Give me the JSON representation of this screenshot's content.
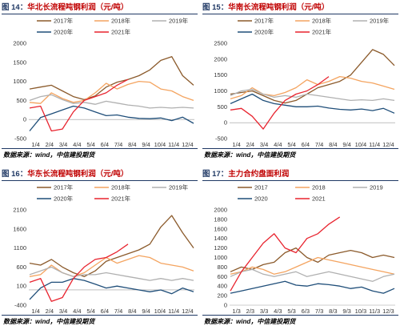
{
  "panels": [
    {
      "fig": "图 14：",
      "title": "华北长流程吨钢利润（元/吨）",
      "source": "数据来源：wind，中信建投期货",
      "chart_data": {
        "type": "line",
        "x_ticks": [
          "1/4",
          "2/4",
          "3/4",
          "4/4",
          "5/4",
          "6/4",
          "7/4",
          "8/4",
          "9/4",
          "10/4",
          "11/4",
          "12/4"
        ],
        "yticks": [
          -500,
          0,
          500,
          1000,
          1500,
          2000
        ],
        "ylim": [
          -500,
          2000
        ],
        "series": [
          {
            "name": "2017年",
            "color": "#8b5a2b",
            "values": [
              800,
              850,
              900,
              750,
              600,
              520,
              620,
              850,
              980,
              1050,
              1150,
              1300,
              1550,
              1650,
              1150,
              900
            ]
          },
          {
            "name": "2018年",
            "color": "#f4a460",
            "values": [
              450,
              420,
              700,
              550,
              450,
              500,
              700,
              950,
              800,
              920,
              1000,
              980,
              800,
              750,
              600,
              500
            ]
          },
          {
            "name": "2019年",
            "color": "#b0b0b0",
            "values": [
              500,
              600,
              650,
              520,
              420,
              450,
              400,
              480,
              430,
              380,
              350,
              300,
              320,
              300,
              320,
              300
            ]
          },
          {
            "name": "2020年",
            "color": "#1f4e79",
            "values": [
              -300,
              50,
              150,
              250,
              350,
              300,
              200,
              100,
              120,
              60,
              30,
              20,
              40,
              -30,
              60,
              -100
            ]
          },
          {
            "name": "2021年",
            "color": "#e8242f",
            "values": [
              300,
              350,
              -300,
              -250,
              200,
              500,
              600,
              700,
              900,
              1050
            ]
          }
        ]
      }
    },
    {
      "fig": "图 15：",
      "title": "华南长流程吨钢利润（元/吨）",
      "source": "数据来源：wind，中信建投期货",
      "chart_data": {
        "type": "line",
        "x_ticks": [
          "1/4",
          "2/4",
          "3/4",
          "4/4",
          "5/4",
          "6/4",
          "7/4",
          "8/4",
          "9/4",
          "10/4",
          "11/4",
          "12/4"
        ],
        "yticks": [
          -500,
          0,
          500,
          1000,
          1500,
          2000,
          2500
        ],
        "ylim": [
          -500,
          2500
        ],
        "series": [
          {
            "name": "2017年",
            "color": "#8b5a2b",
            "values": [
              900,
              950,
              1000,
              850,
              700,
              620,
              700,
              900,
              1100,
              1200,
              1300,
              1500,
              1900,
              2300,
              2150,
              1800
            ]
          },
          {
            "name": "2018年",
            "color": "#f4a460",
            "values": [
              750,
              850,
              1100,
              900,
              850,
              950,
              1100,
              1350,
              1200,
              1300,
              1450,
              1400,
              1300,
              1250,
              1150,
              1050
            ]
          },
          {
            "name": "2019年",
            "color": "#b0b0b0",
            "values": [
              850,
              1000,
              1050,
              900,
              800,
              850,
              800,
              900,
              850,
              800,
              750,
              700,
              720,
              700,
              750,
              700
            ]
          },
          {
            "name": "2020年",
            "color": "#1f4e79",
            "values": [
              600,
              750,
              900,
              700,
              600,
              550,
              500,
              500,
              520,
              460,
              420,
              400,
              430,
              380,
              450,
              300
            ]
          },
          {
            "name": "2021年",
            "color": "#e8242f",
            "values": [
              400,
              450,
              200,
              -200,
              300,
              700,
              900,
              1000,
              1200,
              1450
            ]
          }
        ]
      }
    },
    {
      "fig": "图 16：",
      "title": "华东长流程吨钢利润（元/吨）",
      "source": "数据来源：wind，中信建投期货",
      "chart_data": {
        "type": "line",
        "x_ticks": [
          "1/4",
          "2/4",
          "3/4",
          "4/4",
          "5/4",
          "6/4",
          "7/4",
          "8/4",
          "9/4",
          "10/4",
          "11/4",
          "12/4"
        ],
        "yticks": [
          -400,
          100,
          600,
          1100,
          1600,
          2100
        ],
        "ylim": [
          -400,
          2100
        ],
        "series": [
          {
            "name": "2017年",
            "color": "#8b5a2b",
            "values": [
              700,
              650,
              800,
              600,
              450,
              350,
              500,
              750,
              850,
              950,
              1050,
              1200,
              1650,
              1950,
              1500,
              1100
            ]
          },
          {
            "name": "2018年",
            "color": "#f4a460",
            "values": [
              350,
              400,
              650,
              450,
              350,
              450,
              650,
              850,
              700,
              800,
              900,
              850,
              700,
              650,
              600,
              500
            ]
          },
          {
            "name": "2019年",
            "color": "#b0b0b0",
            "values": [
              400,
              500,
              600,
              450,
              350,
              400,
              400,
              450,
              400,
              350,
              300,
              250,
              300,
              250,
              300,
              250
            ]
          },
          {
            "name": "2020年",
            "color": "#1f4e79",
            "values": [
              -250,
              50,
              200,
              200,
              300,
              250,
              150,
              50,
              100,
              50,
              0,
              -50,
              0,
              -100,
              50,
              -50
            ]
          },
          {
            "name": "2021年",
            "color": "#e8242f",
            "values": [
              200,
              300,
              -300,
              -200,
              300,
              600,
              800,
              850,
              1000,
              1200
            ]
          }
        ]
      }
    },
    {
      "fig": "图 17：",
      "title": "主力合约盘面利润",
      "source": "数据来源：wind，中信建投期货",
      "chart_data": {
        "type": "line",
        "x_ticks": [
          "1/3",
          "2/3",
          "3/3",
          "4/3",
          "5/3",
          "6/3",
          "7/3",
          "8/3",
          "9/3",
          "10/3",
          "11/3",
          "12/3"
        ],
        "yticks": [
          0,
          200,
          400,
          600,
          800,
          1000,
          1200,
          1400,
          1600,
          1800,
          2000
        ],
        "ylim": [
          0,
          2000
        ],
        "series": [
          {
            "name": "2017",
            "color": "#8b5a2b",
            "values": [
              700,
              800,
              750,
              850,
              900,
              1100,
              1200,
              1000,
              900,
              1050,
              1100,
              1150,
              1100,
              1000,
              1050,
              1000
            ]
          },
          {
            "name": "2018",
            "color": "#f4a460",
            "values": [
              650,
              700,
              800,
              750,
              650,
              700,
              800,
              900,
              1000,
              950,
              900,
              850,
              800,
              750,
              700,
              650
            ]
          },
          {
            "name": "2019",
            "color": "#b0b0b0",
            "values": [
              600,
              700,
              750,
              650,
              600,
              650,
              700,
              600,
              650,
              700,
              650,
              600,
              550,
              500,
              600,
              650
            ]
          },
          {
            "name": "2020",
            "color": "#1f4e79",
            "values": [
              250,
              300,
              350,
              400,
              450,
              500,
              420,
              400,
              450,
              430,
              400,
              350,
              380,
              300,
              250,
              350
            ]
          },
          {
            "name": "2021",
            "color": "#e8242f",
            "values": [
              300,
              700,
              1000,
              1300,
              1500,
              1200,
              1100,
              1400,
              1500,
              1700,
              1850
            ]
          }
        ]
      }
    }
  ]
}
